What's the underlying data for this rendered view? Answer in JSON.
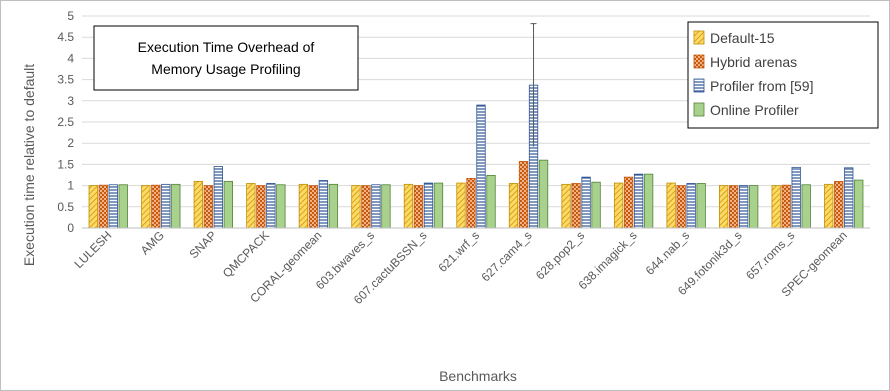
{
  "chart_data": {
    "type": "bar",
    "title": "Execution Time Overhead of Memory Usage Profiling",
    "xlabel": "Benchmarks",
    "ylabel": "Execution time relative to default",
    "ylim": [
      0,
      5
    ],
    "yticks": [
      "0",
      "0.5",
      "1",
      "1.5",
      "2",
      "2.5",
      "3",
      "3.5",
      "4",
      "4.5",
      "5"
    ],
    "grid": true,
    "legend_position": "top-right",
    "categories": [
      "LULESH",
      "AMG",
      "SNAP",
      "QMCPACK",
      "CORAL-geomean",
      "603.bwaves_s",
      "607.cactuBSSN_s",
      "621.wrf_s",
      "627.cam4_s",
      "628.pop2_s",
      "638.imagick_s",
      "644.nab_s",
      "649.fotonik3d_s",
      "657.roms_s",
      "SPEC-geomean"
    ],
    "series": [
      {
        "name": "Default-15",
        "color": "#ffd966",
        "pattern": "diagonal",
        "values": [
          1.0,
          1.0,
          1.1,
          1.05,
          1.03,
          1.0,
          1.03,
          1.06,
          1.05,
          1.03,
          1.06,
          1.06,
          1.0,
          1.0,
          1.03
        ]
      },
      {
        "name": "Hybrid arenas",
        "color": "#f4b183",
        "pattern": "dots",
        "values": [
          1.01,
          1.01,
          1.0,
          1.0,
          1.0,
          1.0,
          1.0,
          1.17,
          1.57,
          1.05,
          1.2,
          1.0,
          1.0,
          1.01,
          1.1
        ]
      },
      {
        "name": "Profiler from [59]",
        "color": "#8faadc",
        "pattern": "horizontal",
        "values": [
          1.02,
          1.03,
          1.45,
          1.05,
          1.12,
          1.02,
          1.06,
          2.9,
          3.37,
          1.2,
          1.27,
          1.05,
          1.0,
          1.43,
          1.42
        ],
        "errors": [
          0,
          0,
          0,
          0,
          0,
          0,
          0,
          0,
          1.45,
          0,
          0,
          0,
          0,
          0,
          0
        ]
      },
      {
        "name": "Online Profiler",
        "color": "#a9d18e",
        "pattern": "solid",
        "values": [
          1.02,
          1.03,
          1.1,
          1.02,
          1.03,
          1.02,
          1.06,
          1.24,
          1.6,
          1.08,
          1.27,
          1.05,
          1.0,
          1.02,
          1.13
        ]
      }
    ]
  }
}
